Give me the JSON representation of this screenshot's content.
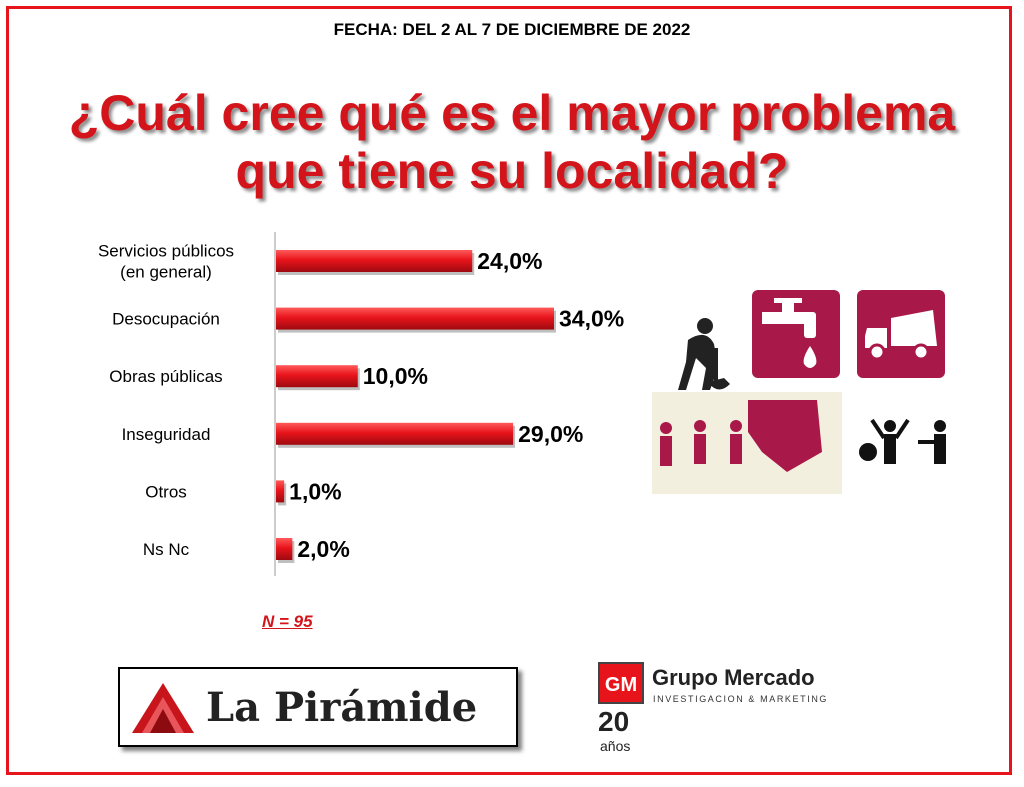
{
  "header": {
    "date": "FECHA: DEL 2 AL 7  DE DICIEMBRE DE 2022",
    "title_line1": "¿Cuál cree qué es el mayor problema",
    "title_line2": "que tiene su localidad?"
  },
  "chart_data": {
    "type": "bar",
    "orientation": "horizontal",
    "categories": [
      "Servicios públicos (en general)",
      "Desocupación",
      "Obras públicas",
      "Inseguridad",
      "Otros",
      "Ns Nc"
    ],
    "category_lines": [
      [
        "Servicios públicos",
        "(en general)"
      ],
      [
        "Desocupación"
      ],
      [
        "Obras públicas"
      ],
      [
        "Inseguridad"
      ],
      [
        "Otros"
      ],
      [
        "Ns Nc"
      ]
    ],
    "values": [
      24.0,
      34.0,
      10.0,
      29.0,
      1.0,
      2.0
    ],
    "value_labels": [
      "24,0%",
      "34,0%",
      "10,0%",
      "29,0%",
      "1,0%",
      "2,0%"
    ],
    "xlim": [
      0,
      34
    ],
    "grid": false,
    "bar_color": "#e8141b"
  },
  "sample": {
    "n_label": "N = 95"
  },
  "brand": {
    "la_piramide": "La Pirámide",
    "grupo_mercado": "Grupo Mercado",
    "gm_subtitle": "INVESTIGACION & MARKETING",
    "gm_years": "20",
    "gm_years_word": "años",
    "gm_logo_letters": "GM"
  },
  "icons": [
    "worker-digging-icon",
    "water-faucet-icon",
    "garbage-truck-icon",
    "layoff-pointing-hand-icon",
    "robbery-icon"
  ],
  "colors": {
    "accent": "#d4141b",
    "frame": "#e8141b",
    "icon_bg": "#a8194a"
  }
}
